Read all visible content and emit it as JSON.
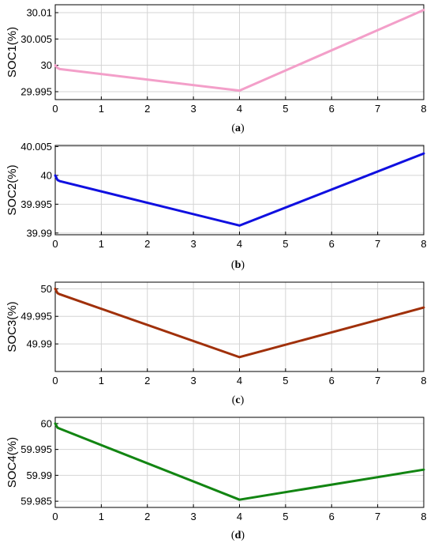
{
  "chart_data": [
    {
      "type": "line",
      "ylabel": "SOC1(%)",
      "xlabel": "",
      "caption": "(a)",
      "xlim": [
        0,
        8
      ],
      "ylim": [
        29.9935,
        30.0115
      ],
      "xticks": [
        0,
        1,
        2,
        3,
        4,
        5,
        6,
        7,
        8
      ],
      "yticks": [
        29.995,
        30,
        30.005,
        30.01
      ],
      "ytick_labels": [
        "29.995",
        "30",
        "30.005",
        "30.01"
      ],
      "grid": true,
      "color": "#f39fc9",
      "series": [
        {
          "x": [
            0,
            0.05,
            0.1,
            4,
            8
          ],
          "y": [
            30.0,
            29.9995,
            29.9993,
            29.9952,
            30.0105
          ]
        }
      ]
    },
    {
      "type": "line",
      "ylabel": "SOC2(%)",
      "xlabel": "",
      "caption": "(b)",
      "xlim": [
        0,
        8
      ],
      "ylim": [
        39.9897,
        40.0052
      ],
      "xticks": [
        0,
        1,
        2,
        3,
        4,
        5,
        6,
        7,
        8
      ],
      "yticks": [
        39.99,
        39.995,
        40,
        40.005
      ],
      "ytick_labels": [
        "39.99",
        "39.995",
        "40",
        "40.005"
      ],
      "grid": true,
      "color": "#1010e0",
      "series": [
        {
          "x": [
            0,
            0.05,
            0.1,
            4,
            8
          ],
          "y": [
            40.0,
            39.9992,
            39.999,
            39.9913,
            40.0038
          ]
        }
      ]
    },
    {
      "type": "line",
      "ylabel": "SOC3(%)",
      "xlabel": "",
      "caption": "(c)",
      "xlim": [
        0,
        8
      ],
      "ylim": [
        49.985,
        50.0012
      ],
      "xticks": [
        0,
        1,
        2,
        3,
        4,
        5,
        6,
        7,
        8
      ],
      "yticks": [
        49.99,
        49.995,
        50
      ],
      "ytick_labels": [
        "49.99",
        "49.995",
        "50"
      ],
      "grid": true,
      "color": "#a0300a",
      "series": [
        {
          "x": [
            0,
            0.05,
            0.1,
            4,
            8
          ],
          "y": [
            50.0,
            49.9992,
            49.999,
            49.9876,
            49.9966
          ]
        }
      ]
    },
    {
      "type": "line",
      "ylabel": "SOC4(%)",
      "xlabel": "",
      "caption": "(d)",
      "xlim": [
        0,
        8
      ],
      "ylim": [
        59.9838,
        60.0012
      ],
      "xticks": [
        0,
        1,
        2,
        3,
        4,
        5,
        6,
        7,
        8
      ],
      "yticks": [
        59.985,
        59.99,
        59.995,
        60
      ],
      "ytick_labels": [
        "59.985",
        "59.99",
        "59.995",
        "60"
      ],
      "grid": true,
      "color": "#128512",
      "series": [
        {
          "x": [
            0,
            0.05,
            0.1,
            4,
            8
          ],
          "y": [
            60.0,
            59.9992,
            59.999,
            59.9853,
            59.9911
          ]
        }
      ]
    }
  ]
}
